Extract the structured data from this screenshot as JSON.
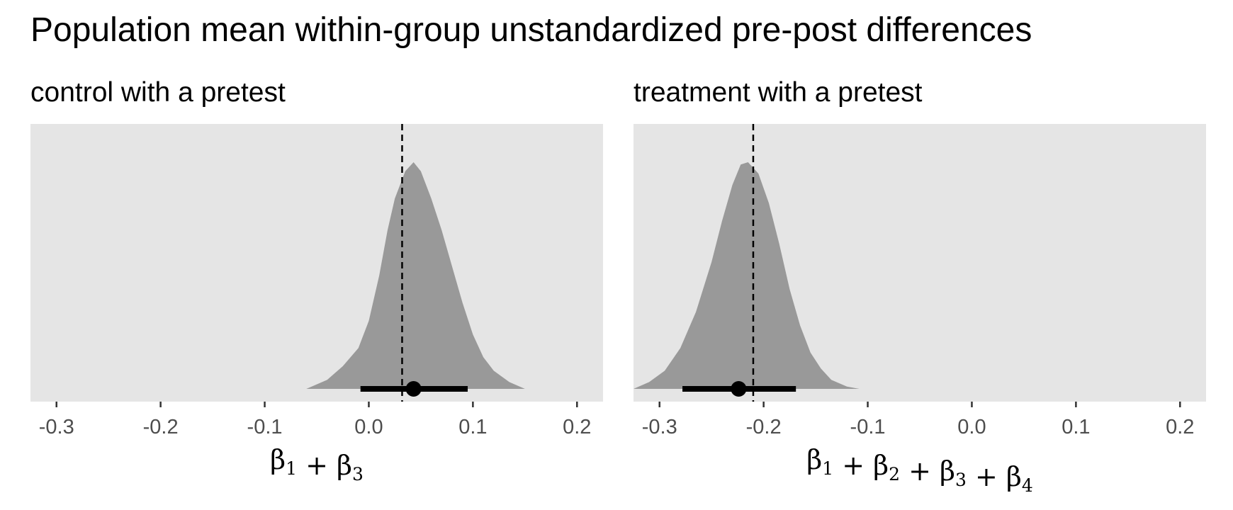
{
  "chart_data": {
    "type": "density",
    "title": "Population mean within-group unstandardized pre-post differences",
    "x_ticks": [
      -0.3,
      -0.2,
      -0.1,
      0.0,
      0.1,
      0.2
    ],
    "x_tick_labels": [
      "-0.3",
      "-0.2",
      "-0.1",
      "0.0",
      "0.1",
      "0.2"
    ],
    "xlim": [
      -0.325,
      0.225
    ],
    "grid": false,
    "colors": {
      "panel": "#e5e5e5",
      "density": "#999999",
      "interval": "#000000",
      "reference_line": "#000000",
      "tick_label": "#4d4d4d"
    },
    "panels": [
      {
        "subtitle": "control with a pretest",
        "xlabel": "β1 + β3",
        "xlabel_parts": [
          {
            "base": "β",
            "sub": "1"
          },
          {
            "sep": " + "
          },
          {
            "base": "β",
            "sub": "3"
          }
        ],
        "reference_value": 0.032,
        "point_estimate": 0.043,
        "interval": [
          -0.008,
          0.095
        ],
        "density": {
          "x": [
            -0.06,
            -0.04,
            -0.025,
            -0.01,
            0.0,
            0.01,
            0.018,
            0.025,
            0.035,
            0.043,
            0.05,
            0.06,
            0.07,
            0.08,
            0.09,
            0.1,
            0.11,
            0.12,
            0.135,
            0.15
          ],
          "y": [
            0.0,
            0.04,
            0.1,
            0.18,
            0.3,
            0.5,
            0.7,
            0.84,
            0.96,
            1.0,
            0.96,
            0.84,
            0.7,
            0.54,
            0.38,
            0.24,
            0.14,
            0.08,
            0.03,
            0.0
          ]
        }
      },
      {
        "subtitle": "treatment with a pretest",
        "xlabel": "β1 + β2 + β3 + β4",
        "xlabel_parts": [
          {
            "base": "β",
            "sub": "1"
          },
          {
            "sep": " + "
          },
          {
            "base": "β",
            "sub": "2"
          },
          {
            "sep": " + "
          },
          {
            "base": "β",
            "sub": "3"
          },
          {
            "sep": " + "
          },
          {
            "base": "β",
            "sub": "4"
          }
        ],
        "reference_value": -0.21,
        "point_estimate": -0.224,
        "interval": [
          -0.278,
          -0.169
        ],
        "density": {
          "x": [
            -0.325,
            -0.31,
            -0.295,
            -0.28,
            -0.265,
            -0.25,
            -0.24,
            -0.23,
            -0.222,
            -0.215,
            -0.205,
            -0.195,
            -0.185,
            -0.175,
            -0.165,
            -0.155,
            -0.145,
            -0.135,
            -0.12,
            -0.108
          ],
          "y": [
            0.0,
            0.03,
            0.08,
            0.18,
            0.34,
            0.56,
            0.74,
            0.9,
            0.99,
            1.0,
            0.95,
            0.82,
            0.64,
            0.44,
            0.28,
            0.16,
            0.09,
            0.04,
            0.01,
            0.0
          ]
        }
      }
    ]
  }
}
